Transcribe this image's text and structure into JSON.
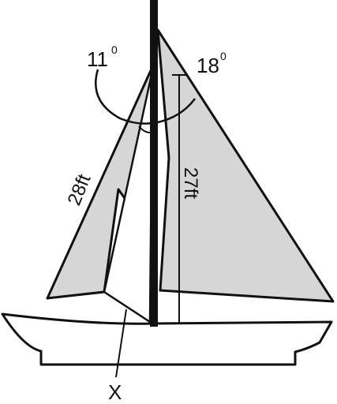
{
  "diagram": {
    "angles": {
      "left_angle": "11",
      "right_angle": "18",
      "degree_mark": "0"
    },
    "lengths": {
      "jib_edge": "28ft",
      "mast_height": "27ft"
    },
    "unknown_label": "X"
  },
  "colors": {
    "sail_fill": "#d6d6d6",
    "line": "#111111",
    "background": "#ffffff"
  }
}
